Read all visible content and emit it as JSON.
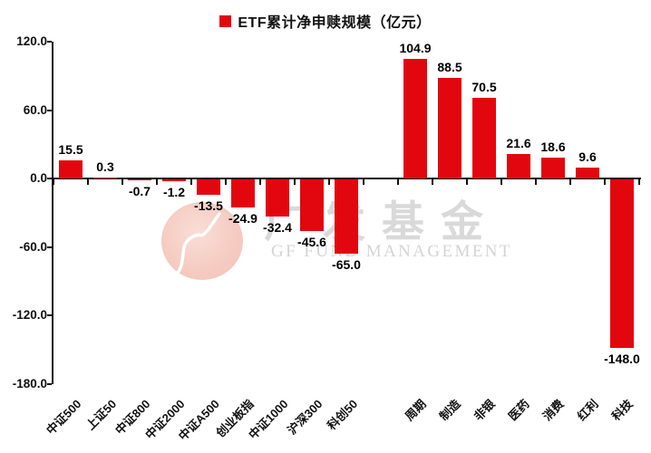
{
  "legend": {
    "label": "ETF累计净申赎规模（亿元）",
    "marker_color": "#e2070f"
  },
  "watermark": {
    "logo_icon": "gf-fund-circle-logo",
    "title": "广发基金",
    "subtitle": "GF FUND MANAGEMENT"
  },
  "chart_data": {
    "type": "bar",
    "title": "ETF累计净申赎规模（亿元）",
    "unit": "亿元",
    "categories": [
      "中证500",
      "上证50",
      "中证800",
      "中证2000",
      "中证A500",
      "创业板指",
      "中证1000",
      "沪深300",
      "科创50",
      "",
      "周期",
      "制造",
      "非银",
      "医药",
      "消费",
      "红利",
      "科技"
    ],
    "values": [
      15.5,
      0.3,
      -0.7,
      -1.2,
      -13.5,
      -24.9,
      -32.4,
      -45.6,
      -65.0,
      null,
      104.9,
      88.5,
      70.5,
      21.6,
      18.6,
      9.6,
      -148.0
    ],
    "value_labels": [
      "15.5",
      "0.3",
      "-0.7",
      "-1.2",
      "-13.5",
      "-24.9",
      "-32.4",
      "-45.6",
      "-65.0",
      "",
      "104.9",
      "88.5",
      "70.5",
      "21.6",
      "18.6",
      "9.6",
      "-148.0"
    ],
    "yticks": {
      "values": [
        120,
        60,
        0,
        -60,
        -120,
        -180
      ],
      "labels": [
        "120.0",
        "60.0",
        "0.0",
        "-60.0",
        "-120.0",
        "-180.0"
      ]
    },
    "ylim": [
      -180,
      120
    ],
    "xlabel": "",
    "ylabel": "",
    "bar_color": "#e2070f",
    "grid": false,
    "legend_position": "top-center",
    "group_gap_after_index": 8
  }
}
